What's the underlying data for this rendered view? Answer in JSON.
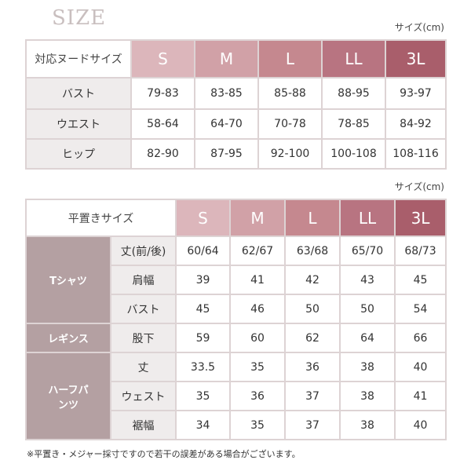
{
  "title": "SIZE",
  "unit_label": "サイズ(cm)",
  "size_colors": [
    "#dcb6bb",
    "#d1a1a7",
    "#c5888f",
    "#b87481",
    "#a95e6b"
  ],
  "table1": {
    "header": "対応ヌードサイズ",
    "sizes": [
      "S",
      "M",
      "L",
      "LL",
      "3L"
    ],
    "rows": [
      {
        "label": "バスト",
        "values": [
          "79-83",
          "83-85",
          "85-88",
          "88-95",
          "93-97"
        ]
      },
      {
        "label": "ウエスト",
        "values": [
          "58-64",
          "64-70",
          "70-78",
          "78-85",
          "84-92"
        ]
      },
      {
        "label": "ヒップ",
        "values": [
          "82-90",
          "87-95",
          "92-100",
          "100-108",
          "108-116"
        ]
      }
    ]
  },
  "table2": {
    "header": "平置きサイズ",
    "sizes": [
      "S",
      "M",
      "L",
      "LL",
      "3L"
    ],
    "groups": [
      "Tシャツ",
      "レギンス",
      "ハーフパンツ"
    ],
    "rows": [
      {
        "label": "丈(前/後)",
        "values": [
          "60/64",
          "62/67",
          "63/68",
          "65/70",
          "68/73"
        ]
      },
      {
        "label": "肩幅",
        "values": [
          "39",
          "41",
          "42",
          "43",
          "45"
        ]
      },
      {
        "label": "バスト",
        "values": [
          "45",
          "46",
          "50",
          "50",
          "54"
        ]
      },
      {
        "label": "股下",
        "values": [
          "59",
          "60",
          "62",
          "64",
          "66"
        ]
      },
      {
        "label": "丈",
        "values": [
          "33.5",
          "35",
          "36",
          "38",
          "40"
        ]
      },
      {
        "label": "ウェスト",
        "values": [
          "35",
          "36",
          "37",
          "38",
          "41"
        ]
      },
      {
        "label": "裾幅",
        "values": [
          "34",
          "35",
          "37",
          "38",
          "40"
        ]
      }
    ]
  },
  "note": "※平置き・メジャー採寸ですので若干の誤差がある場合がございます。"
}
